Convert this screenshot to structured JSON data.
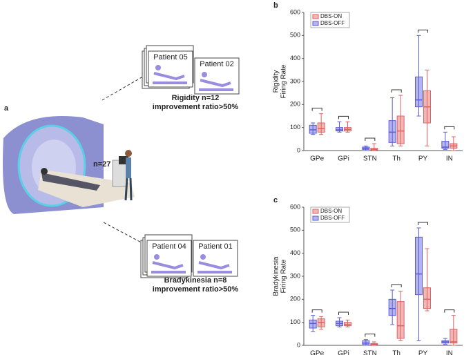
{
  "panel_a": {
    "letter": "a",
    "cohort": "n=27",
    "groups": [
      {
        "patients": [
          "Patient 05",
          "Patient 02"
        ],
        "label": "Rigidity n=12",
        "criterion": "improvement ratio>50%"
      },
      {
        "patients": [
          "Patient 04",
          "Patient 01"
        ],
        "label": "Bradykinesia n=8",
        "criterion": "improvement ratio>50%"
      }
    ]
  },
  "chart_data": [
    {
      "type": "box",
      "panel": "b",
      "ylabel": [
        "Rigidity",
        "Firing Rate"
      ],
      "categories": [
        "GPe",
        "GPi",
        "STN",
        "Th",
        "PY",
        "IN"
      ],
      "ylim": [
        0,
        600
      ],
      "yticks": [
        0,
        100,
        200,
        300,
        400,
        500,
        600
      ],
      "legend": "upper left",
      "series": [
        {
          "name": "DBS-ON",
          "color": "#e06060",
          "boxes": [
            {
              "low": 70,
              "q1": 80,
              "median": 95,
              "q3": 120,
              "high": 160
            },
            {
              "low": 80,
              "q1": 85,
              "median": 92,
              "q3": 100,
              "high": 125
            },
            {
              "low": 0,
              "q1": 3,
              "median": 5,
              "q3": 10,
              "high": 30
            },
            {
              "low": 20,
              "q1": 30,
              "median": 85,
              "q3": 150,
              "high": 240
            },
            {
              "low": 20,
              "q1": 120,
              "median": 190,
              "q3": 260,
              "high": 350
            },
            {
              "low": 0,
              "q1": 10,
              "median": 20,
              "q3": 30,
              "high": 60
            }
          ]
        },
        {
          "name": "DBS-OFF",
          "color": "#5b5bd6",
          "boxes": [
            {
              "low": 70,
              "q1": 75,
              "median": 90,
              "q3": 110,
              "high": 120
            },
            {
              "low": 80,
              "q1": 85,
              "median": 90,
              "q3": 100,
              "high": 125
            },
            {
              "low": 0,
              "q1": 5,
              "median": 10,
              "q3": 15,
              "high": 20
            },
            {
              "low": 20,
              "q1": 35,
              "median": 80,
              "q3": 130,
              "high": 230
            },
            {
              "low": 150,
              "q1": 190,
              "median": 220,
              "q3": 320,
              "high": 500
            },
            {
              "low": 5,
              "q1": 10,
              "median": 15,
              "q3": 40,
              "high": 80
            }
          ]
        }
      ]
    },
    {
      "type": "box",
      "panel": "c",
      "ylabel": [
        "Bradykinesia",
        "Firing Rate"
      ],
      "categories": [
        "GPe",
        "GPi",
        "STN",
        "Th",
        "PY",
        "IN"
      ],
      "ylim": [
        0,
        600
      ],
      "yticks": [
        0,
        100,
        200,
        300,
        400,
        500,
        600
      ],
      "legend": "upper left",
      "series": [
        {
          "name": "DBS-ON",
          "color": "#e06060",
          "boxes": [
            {
              "low": 70,
              "q1": 80,
              "median": 100,
              "q3": 115,
              "high": 125
            },
            {
              "low": 80,
              "q1": 85,
              "median": 90,
              "q3": 100,
              "high": 110
            },
            {
              "low": 0,
              "q1": 2,
              "median": 5,
              "q3": 8,
              "high": 15
            },
            {
              "low": 20,
              "q1": 30,
              "median": 85,
              "q3": 190,
              "high": 235
            },
            {
              "low": 150,
              "q1": 160,
              "median": 200,
              "q3": 250,
              "high": 420
            },
            {
              "low": 0,
              "q1": 10,
              "median": 15,
              "q3": 70,
              "high": 130
            }
          ]
        },
        {
          "name": "DBS-OFF",
          "color": "#5b5bd6",
          "boxes": [
            {
              "low": 60,
              "q1": 75,
              "median": 95,
              "q3": 110,
              "high": 130
            },
            {
              "low": 80,
              "q1": 85,
              "median": 95,
              "q3": 105,
              "high": 120
            },
            {
              "low": 0,
              "q1": 5,
              "median": 10,
              "q3": 20,
              "high": 25
            },
            {
              "low": 90,
              "q1": 130,
              "median": 160,
              "q3": 200,
              "high": 240
            },
            {
              "low": 20,
              "q1": 220,
              "median": 310,
              "q3": 470,
              "high": 510
            },
            {
              "low": 5,
              "q1": 10,
              "median": 15,
              "q3": 20,
              "high": 30
            }
          ]
        }
      ]
    }
  ]
}
